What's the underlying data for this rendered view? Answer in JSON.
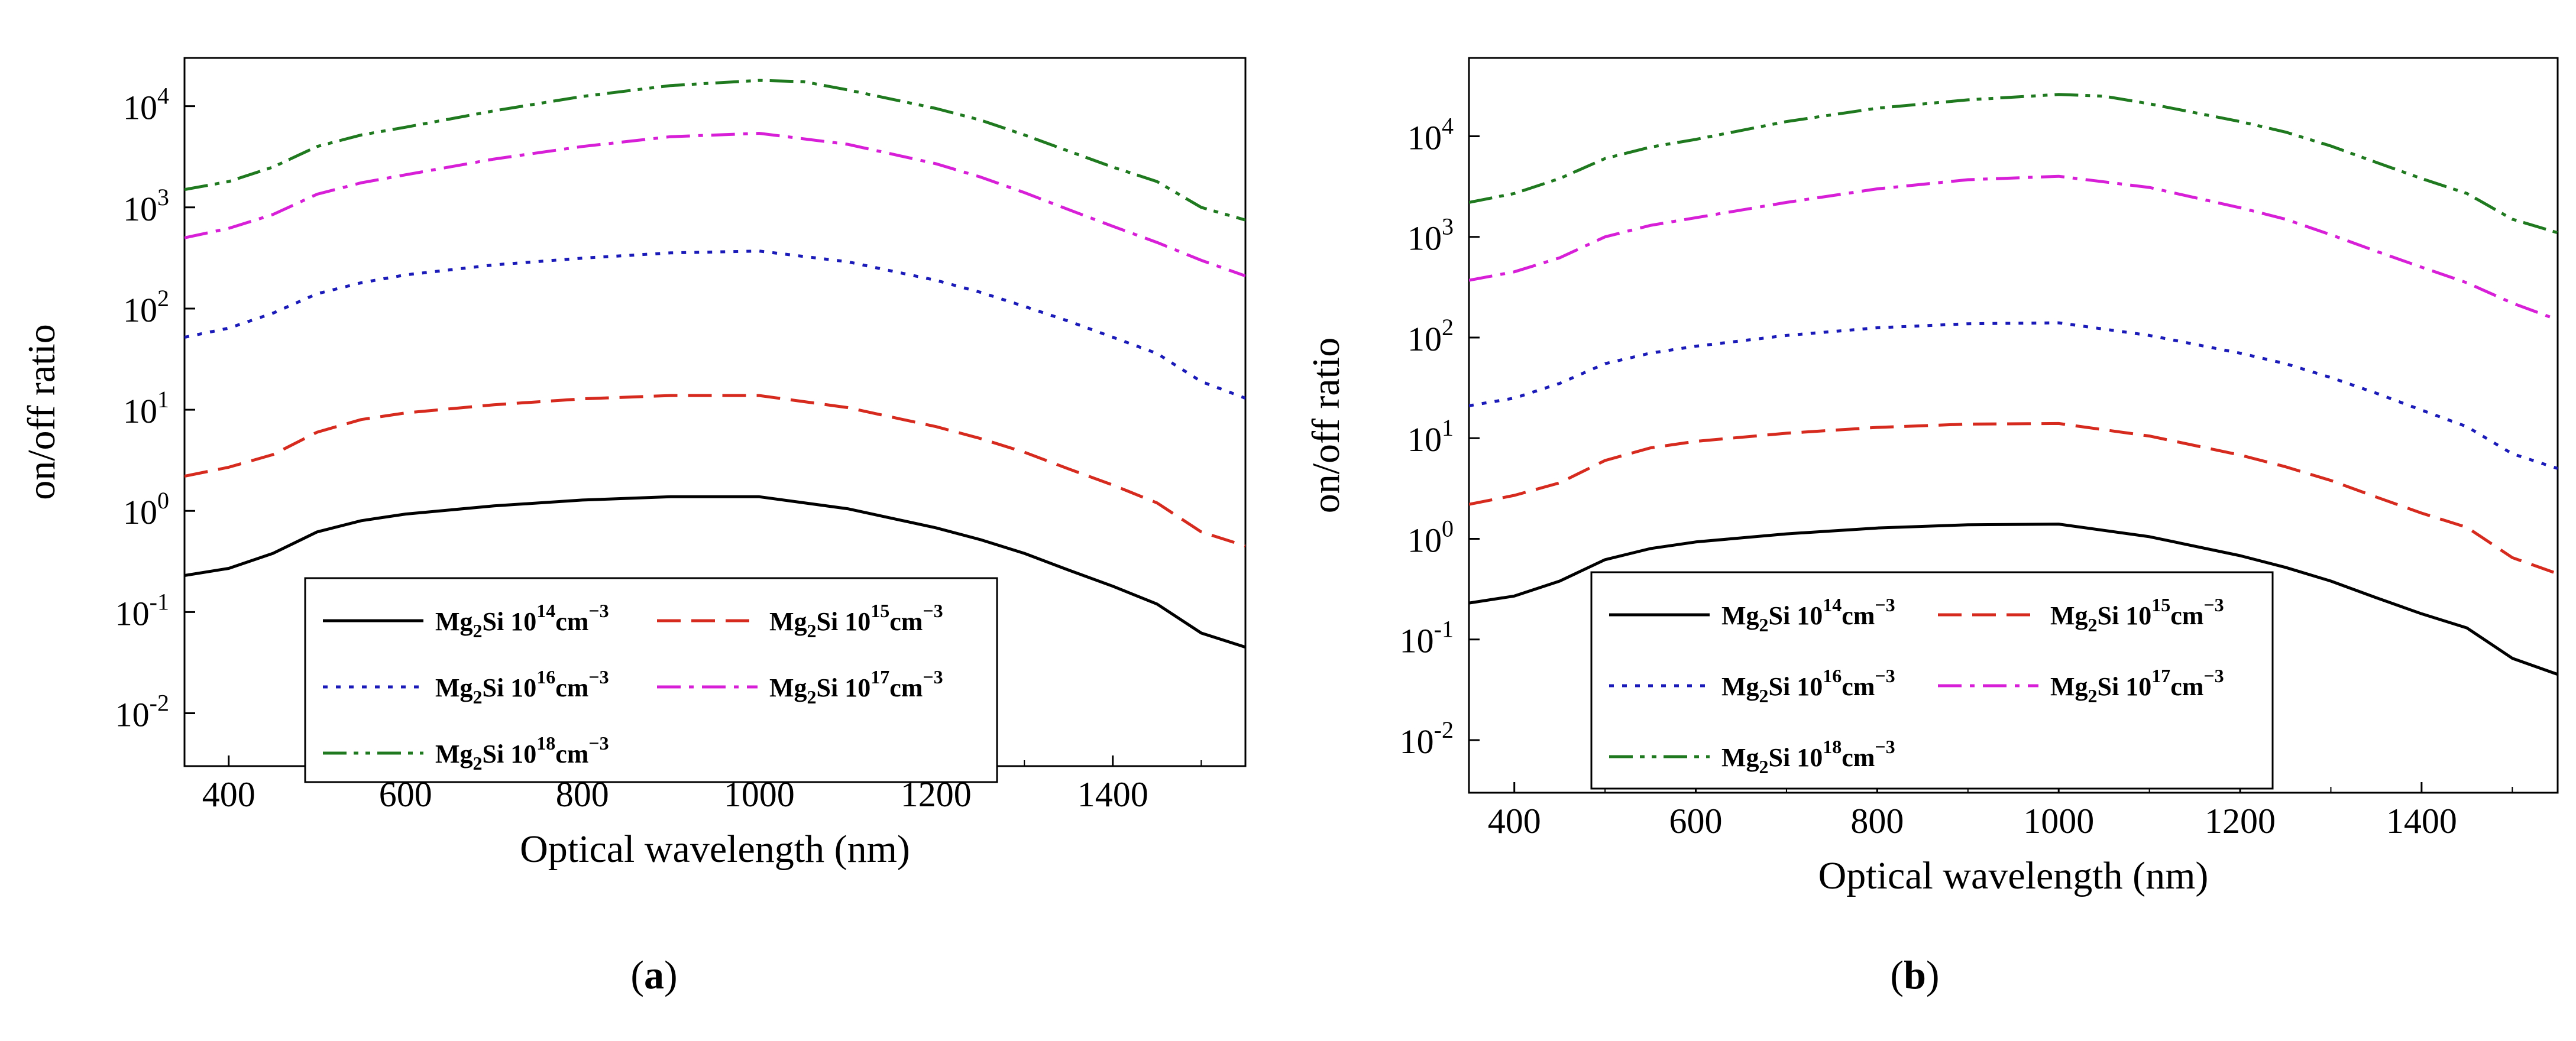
{
  "chart_data": [
    {
      "type": "line",
      "panel_label": "(a)",
      "xlabel": "Optical wavelength (nm)",
      "ylabel": "on/off ratio",
      "xlim": [
        350,
        1550
      ],
      "ylim": [
        0.003,
        30000
      ],
      "yscale": "log",
      "x_ticks": [
        400,
        600,
        800,
        1000,
        1200,
        1400
      ],
      "y_ticks": [
        {
          "value": 0.01,
          "base": "10",
          "exp": "-2"
        },
        {
          "value": 0.1,
          "base": "10",
          "exp": "-1"
        },
        {
          "value": 1,
          "base": "10",
          "exp": "0"
        },
        {
          "value": 10,
          "base": "10",
          "exp": "1"
        },
        {
          "value": 100,
          "base": "10",
          "exp": "2"
        },
        {
          "value": 1000,
          "base": "10",
          "exp": "3"
        },
        {
          "value": 10000,
          "base": "10",
          "exp": "4"
        }
      ],
      "legend_position": "bottom-center",
      "series": [
        {
          "name": "Mg2Si 10^14 cm^-3",
          "label_base": "Mg",
          "label_sub": "2",
          "label_mid": "Si 10",
          "label_sup": "14",
          "label_unit": "cm",
          "label_unit_sup": "−3",
          "color": "#000000",
          "dash": "solid",
          "x": [
            350,
            400,
            450,
            500,
            550,
            600,
            700,
            800,
            900,
            1000,
            1100,
            1200,
            1250,
            1300,
            1350,
            1400,
            1450,
            1500,
            1550
          ],
          "values": [
            0.23,
            0.27,
            0.38,
            0.62,
            0.8,
            0.93,
            1.12,
            1.28,
            1.38,
            1.38,
            1.05,
            0.68,
            0.52,
            0.38,
            0.26,
            0.18,
            0.12,
            0.062,
            0.045
          ]
        },
        {
          "name": "Mg2Si 10^15 cm^-3",
          "label_base": "Mg",
          "label_sub": "2",
          "label_mid": "Si 10",
          "label_sup": "15",
          "label_unit": "cm",
          "label_unit_sup": "−3",
          "color": "#d62a1e",
          "dash": "dashed",
          "x": [
            350,
            400,
            450,
            500,
            550,
            600,
            700,
            800,
            900,
            1000,
            1100,
            1200,
            1250,
            1300,
            1350,
            1400,
            1450,
            1500,
            1550
          ],
          "values": [
            2.2,
            2.7,
            3.6,
            6.0,
            8.0,
            9.3,
            11.2,
            12.8,
            13.8,
            13.8,
            10.5,
            6.8,
            5.2,
            3.8,
            2.6,
            1.8,
            1.2,
            0.62,
            0.45
          ]
        },
        {
          "name": "Mg2Si 10^16 cm^-3",
          "label_base": "Mg",
          "label_sub": "2",
          "label_mid": "Si 10",
          "label_sup": "16",
          "label_unit": "cm",
          "label_unit_sup": "−3",
          "color": "#1a1ab8",
          "dash": "dotted",
          "x": [
            350,
            400,
            450,
            500,
            550,
            600,
            700,
            800,
            900,
            1000,
            1100,
            1200,
            1250,
            1300,
            1350,
            1400,
            1450,
            1500,
            1550
          ],
          "values": [
            52,
            64,
            90,
            140,
            180,
            215,
            270,
            315,
            355,
            370,
            290,
            190,
            145,
            105,
            75,
            52,
            36,
            19,
            13
          ]
        },
        {
          "name": "Mg2Si 10^17 cm^-3",
          "label_base": "Mg",
          "label_sub": "2",
          "label_mid": "Si 10",
          "label_sup": "17",
          "label_unit": "cm",
          "label_unit_sup": "−3",
          "color": "#d81fd8",
          "dash": "dashdot",
          "x": [
            350,
            400,
            450,
            500,
            550,
            600,
            700,
            800,
            900,
            1000,
            1100,
            1200,
            1250,
            1300,
            1350,
            1400,
            1450,
            1500,
            1550
          ],
          "values": [
            500,
            620,
            850,
            1350,
            1750,
            2100,
            3000,
            4000,
            5000,
            5400,
            4200,
            2700,
            2000,
            1400,
            950,
            650,
            450,
            300,
            210
          ]
        },
        {
          "name": "Mg2Si 10^18 cm^-3",
          "label_base": "Mg",
          "label_sub": "2",
          "label_mid": "Si 10",
          "label_sup": "18",
          "label_unit": "cm",
          "label_unit_sup": "−3",
          "color": "#1f7a1f",
          "dash": "dashdotdot",
          "x": [
            350,
            400,
            450,
            500,
            550,
            600,
            700,
            800,
            900,
            1000,
            1050,
            1100,
            1200,
            1250,
            1300,
            1350,
            1400,
            1450,
            1500,
            1550
          ],
          "values": [
            1500,
            1800,
            2500,
            4000,
            5200,
            6200,
            9000,
            12500,
            16000,
            18000,
            17500,
            14500,
            9500,
            7300,
            5200,
            3600,
            2500,
            1800,
            1000,
            750
          ]
        }
      ]
    },
    {
      "type": "line",
      "panel_label": "(b)",
      "xlabel": "Optical wavelength (nm)",
      "ylabel": "on/off ratio",
      "xlim": [
        350,
        1550
      ],
      "ylim": [
        0.003,
        60000
      ],
      "yscale": "log",
      "x_ticks": [
        400,
        600,
        800,
        1000,
        1200,
        1400
      ],
      "y_ticks": [
        {
          "value": 0.01,
          "base": "10",
          "exp": "-2"
        },
        {
          "value": 0.1,
          "base": "10",
          "exp": "-1"
        },
        {
          "value": 1,
          "base": "10",
          "exp": "0"
        },
        {
          "value": 10,
          "base": "10",
          "exp": "1"
        },
        {
          "value": 100,
          "base": "10",
          "exp": "2"
        },
        {
          "value": 1000,
          "base": "10",
          "exp": "3"
        },
        {
          "value": 10000,
          "base": "10",
          "exp": "4"
        }
      ],
      "legend_position": "bottom-center",
      "series": [
        {
          "name": "Mg2Si 10^14 cm^-3",
          "label_base": "Mg",
          "label_sub": "2",
          "label_mid": "Si 10",
          "label_sup": "14",
          "label_unit": "cm",
          "label_unit_sup": "−3",
          "color": "#000000",
          "dash": "solid",
          "x": [
            350,
            400,
            450,
            500,
            550,
            600,
            700,
            800,
            900,
            1000,
            1100,
            1200,
            1250,
            1300,
            1350,
            1400,
            1450,
            1500,
            1550
          ],
          "values": [
            0.23,
            0.27,
            0.38,
            0.62,
            0.8,
            0.93,
            1.12,
            1.28,
            1.38,
            1.4,
            1.05,
            0.68,
            0.52,
            0.38,
            0.26,
            0.18,
            0.13,
            0.065,
            0.045
          ]
        },
        {
          "name": "Mg2Si 10^15 cm^-3",
          "label_base": "Mg",
          "label_sub": "2",
          "label_mid": "Si 10",
          "label_sup": "15",
          "label_unit": "cm",
          "label_unit_sup": "−3",
          "color": "#d62a1e",
          "dash": "dashed",
          "x": [
            350,
            400,
            450,
            500,
            550,
            600,
            700,
            800,
            900,
            1000,
            1100,
            1200,
            1250,
            1300,
            1350,
            1400,
            1450,
            1500,
            1550
          ],
          "values": [
            2.2,
            2.7,
            3.6,
            6.0,
            8.0,
            9.3,
            11.2,
            12.8,
            13.8,
            14.0,
            10.5,
            6.8,
            5.2,
            3.8,
            2.6,
            1.8,
            1.3,
            0.65,
            0.45
          ]
        },
        {
          "name": "Mg2Si 10^16 cm^-3",
          "label_base": "Mg",
          "label_sub": "2",
          "label_mid": "Si 10",
          "label_sup": "16",
          "label_unit": "cm",
          "label_unit_sup": "−3",
          "color": "#1a1ab8",
          "dash": "dotted",
          "x": [
            350,
            400,
            450,
            500,
            550,
            600,
            700,
            800,
            900,
            1000,
            1100,
            1200,
            1250,
            1300,
            1350,
            1400,
            1450,
            1500,
            1550
          ],
          "values": [
            21,
            25,
            35,
            55,
            70,
            82,
            105,
            125,
            137,
            140,
            105,
            70,
            55,
            40,
            28,
            19,
            13,
            7,
            5
          ]
        },
        {
          "name": "Mg2Si 10^17 cm^-3",
          "label_base": "Mg",
          "label_sub": "2",
          "label_mid": "Si 10",
          "label_sup": "17",
          "label_unit": "cm",
          "label_unit_sup": "−3",
          "color": "#d81fd8",
          "dash": "dashdot",
          "x": [
            350,
            400,
            450,
            500,
            550,
            600,
            700,
            800,
            900,
            1000,
            1100,
            1200,
            1250,
            1300,
            1350,
            1400,
            1450,
            1500,
            1550
          ],
          "values": [
            370,
            450,
            620,
            1000,
            1300,
            1550,
            2200,
            3000,
            3700,
            4000,
            3100,
            1950,
            1500,
            1050,
            720,
            500,
            350,
            220,
            150
          ]
        },
        {
          "name": "Mg2Si 10^18 cm^-3",
          "label_base": "Mg",
          "label_sub": "2",
          "label_mid": "Si 10",
          "label_sup": "18",
          "label_unit": "cm",
          "label_unit_sup": "−3",
          "color": "#1f7a1f",
          "dash": "dashdotdot",
          "x": [
            350,
            400,
            450,
            500,
            550,
            600,
            700,
            800,
            900,
            1000,
            1050,
            1100,
            1200,
            1250,
            1300,
            1350,
            1400,
            1450,
            1500,
            1550
          ],
          "values": [
            2200,
            2700,
            3800,
            6000,
            7800,
            9300,
            14000,
            19000,
            23000,
            26000,
            25000,
            21000,
            14000,
            11000,
            8000,
            5500,
            3800,
            2700,
            1500,
            1100
          ]
        }
      ]
    }
  ]
}
